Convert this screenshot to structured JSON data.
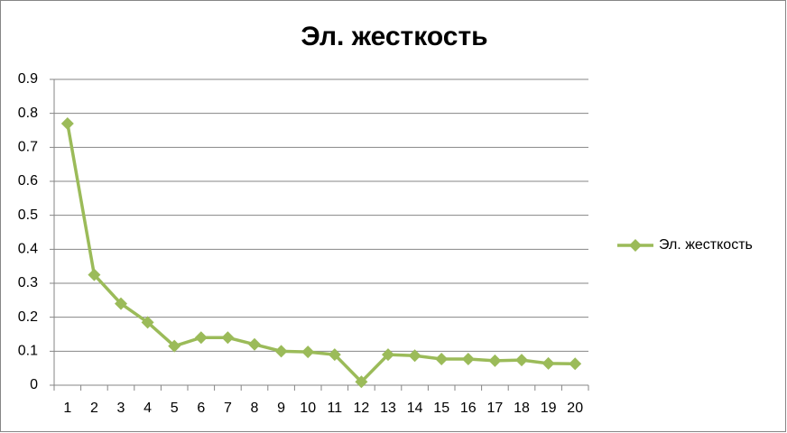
{
  "chart_data": {
    "type": "line",
    "title": "Эл. жесткость",
    "categories": [
      "1",
      "2",
      "3",
      "4",
      "5",
      "6",
      "7",
      "8",
      "9",
      "10",
      "11",
      "12",
      "13",
      "14",
      "15",
      "16",
      "17",
      "18",
      "19",
      "20"
    ],
    "series": [
      {
        "name": "Эл. жесткость",
        "color": "#9bbb59",
        "values": [
          0.77,
          0.325,
          0.24,
          0.185,
          0.115,
          0.14,
          0.14,
          0.12,
          0.1,
          0.098,
          0.09,
          0.01,
          0.09,
          0.087,
          0.077,
          0.077,
          0.072,
          0.074,
          0.064,
          0.063
        ]
      }
    ],
    "ylim": [
      0,
      0.9
    ],
    "yticks": [
      0,
      0.1,
      0.2,
      0.3,
      0.4,
      0.5,
      0.6,
      0.7,
      0.8,
      0.9
    ],
    "grid": true,
    "legend": "right"
  }
}
